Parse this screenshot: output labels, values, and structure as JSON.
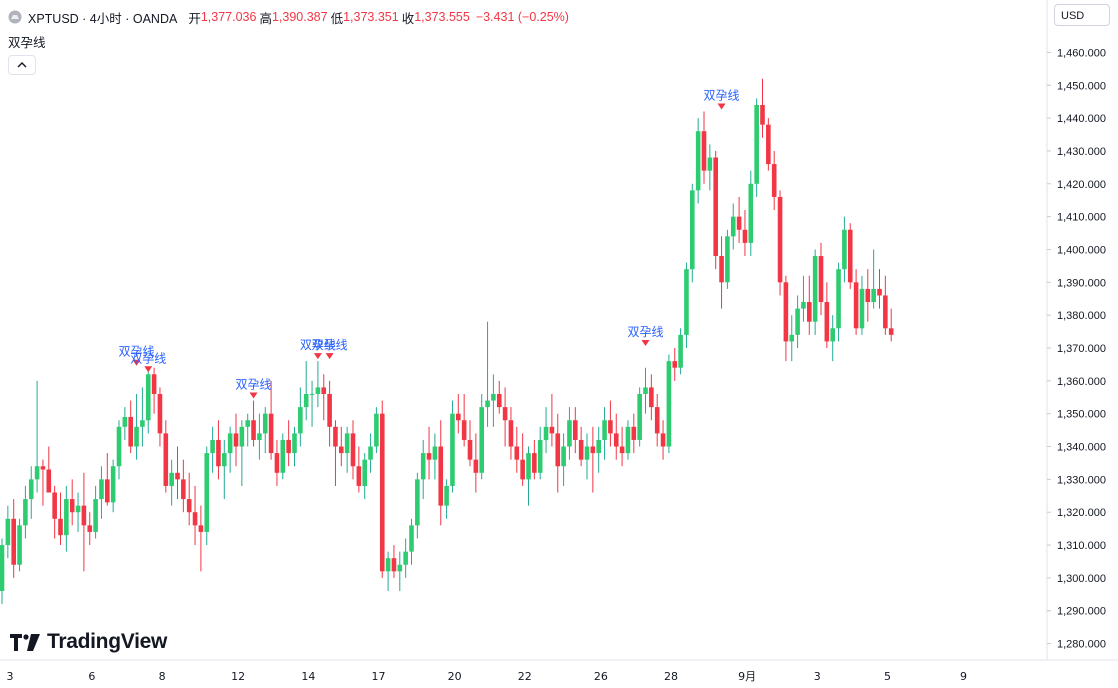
{
  "header": {
    "title": "XPTUSD · 4小时 · OANDA",
    "open_label": "开",
    "open_value": "1,377.036",
    "high_label": "高",
    "high_value": "1,390.387",
    "low_label": "低",
    "low_value": "1,373.351",
    "close_label": "收",
    "close_value": "1,373.555",
    "change": "−3.431 (−0.25%)"
  },
  "indicator": {
    "name": "双孕线"
  },
  "currency": "USD",
  "logo_text": "TradingView",
  "colors": {
    "up": "#22ab94",
    "up_fill": "#2ecc71",
    "down": "#f23645",
    "signal": "#2962ff",
    "marker": "#f23645",
    "axis_text": "#131722"
  },
  "chart_data": {
    "type": "candlestick",
    "ylim": [
      1275,
      1465
    ],
    "y_ticks": [
      1280,
      1290,
      1300,
      1310,
      1320,
      1330,
      1340,
      1350,
      1360,
      1370,
      1380,
      1390,
      1400,
      1410,
      1420,
      1430,
      1440,
      1450,
      1460
    ],
    "y_tick_labels": [
      "1,280.000",
      "1,290.000",
      "1,300.000",
      "1,310.000",
      "1,320.000",
      "1,330.000",
      "1,340.000",
      "1,350.000",
      "1,360.000",
      "1,370.000",
      "1,380.000",
      "1,390.000",
      "1,400.000",
      "1,410.000",
      "1,420.000",
      "1,430.000",
      "1,440.000",
      "1,450.000",
      "1,460.000"
    ],
    "x_labels": [
      {
        "label": "3",
        "index": 0
      },
      {
        "label": "6",
        "index": 14
      },
      {
        "label": "8",
        "index": 26
      },
      {
        "label": "12",
        "index": 39
      },
      {
        "label": "14",
        "index": 51
      },
      {
        "label": "17",
        "index": 63
      },
      {
        "label": "20",
        "index": 76
      },
      {
        "label": "22",
        "index": 88
      },
      {
        "label": "26",
        "index": 101
      },
      {
        "label": "28",
        "index": 113
      },
      {
        "label": "9月",
        "index": 126
      },
      {
        "label": "3",
        "index": 138
      },
      {
        "label": "5",
        "index": 150
      },
      {
        "label": "9",
        "index": 163
      }
    ],
    "candles": [
      [
        1296,
        1312,
        1292,
        1310
      ],
      [
        1310,
        1322,
        1306,
        1318
      ],
      [
        1318,
        1324,
        1300,
        1304
      ],
      [
        1304,
        1318,
        1302,
        1316
      ],
      [
        1316,
        1328,
        1312,
        1324
      ],
      [
        1324,
        1334,
        1318,
        1330
      ],
      [
        1330,
        1360,
        1326,
        1334
      ],
      [
        1334,
        1336,
        1322,
        1333
      ],
      [
        1333,
        1340,
        1326,
        1326
      ],
      [
        1326,
        1328,
        1312,
        1318
      ],
      [
        1318,
        1326,
        1310,
        1313
      ],
      [
        1313,
        1328,
        1308,
        1324
      ],
      [
        1324,
        1330,
        1316,
        1320
      ],
      [
        1320,
        1326,
        1314,
        1322
      ],
      [
        1322,
        1332,
        1302,
        1316
      ],
      [
        1316,
        1320,
        1310,
        1314
      ],
      [
        1314,
        1328,
        1312,
        1324
      ],
      [
        1324,
        1334,
        1318,
        1330
      ],
      [
        1330,
        1338,
        1322,
        1323
      ],
      [
        1323,
        1336,
        1320,
        1334
      ],
      [
        1334,
        1348,
        1330,
        1346
      ],
      [
        1346,
        1352,
        1342,
        1349
      ],
      [
        1349,
        1354,
        1338,
        1340
      ],
      [
        1340,
        1356,
        1336,
        1346
      ],
      [
        1346,
        1358,
        1340,
        1348
      ],
      [
        1348,
        1364,
        1344,
        1362
      ],
      [
        1362,
        1364,
        1350,
        1356
      ],
      [
        1356,
        1358,
        1340,
        1344
      ],
      [
        1344,
        1348,
        1326,
        1328
      ],
      [
        1328,
        1336,
        1322,
        1332
      ],
      [
        1332,
        1340,
        1324,
        1330
      ],
      [
        1330,
        1336,
        1320,
        1324
      ],
      [
        1324,
        1332,
        1316,
        1320
      ],
      [
        1320,
        1328,
        1310,
        1316
      ],
      [
        1316,
        1322,
        1302,
        1314
      ],
      [
        1314,
        1340,
        1310,
        1338
      ],
      [
        1338,
        1346,
        1332,
        1342
      ],
      [
        1342,
        1348,
        1330,
        1334
      ],
      [
        1334,
        1342,
        1324,
        1338
      ],
      [
        1338,
        1346,
        1332,
        1344
      ],
      [
        1344,
        1350,
        1334,
        1340
      ],
      [
        1340,
        1348,
        1328,
        1346
      ],
      [
        1346,
        1350,
        1340,
        1348
      ],
      [
        1348,
        1354,
        1340,
        1342
      ],
      [
        1342,
        1350,
        1336,
        1344
      ],
      [
        1344,
        1352,
        1338,
        1350
      ],
      [
        1350,
        1360,
        1336,
        1338
      ],
      [
        1338,
        1342,
        1328,
        1332
      ],
      [
        1332,
        1344,
        1330,
        1342
      ],
      [
        1342,
        1348,
        1334,
        1338
      ],
      [
        1338,
        1346,
        1334,
        1344
      ],
      [
        1344,
        1358,
        1340,
        1352
      ],
      [
        1352,
        1366,
        1348,
        1356
      ],
      [
        1356,
        1360,
        1346,
        1356
      ],
      [
        1356,
        1366,
        1352,
        1358
      ],
      [
        1358,
        1362,
        1348,
        1356
      ],
      [
        1356,
        1360,
        1340,
        1346
      ],
      [
        1346,
        1348,
        1328,
        1340
      ],
      [
        1340,
        1346,
        1334,
        1338
      ],
      [
        1338,
        1346,
        1332,
        1344
      ],
      [
        1344,
        1348,
        1330,
        1334
      ],
      [
        1334,
        1340,
        1326,
        1328
      ],
      [
        1328,
        1338,
        1324,
        1336
      ],
      [
        1336,
        1344,
        1332,
        1340
      ],
      [
        1340,
        1352,
        1338,
        1350
      ],
      [
        1350,
        1354,
        1300,
        1302
      ],
      [
        1302,
        1308,
        1296,
        1306
      ],
      [
        1306,
        1310,
        1300,
        1302
      ],
      [
        1302,
        1308,
        1296,
        1304
      ],
      [
        1304,
        1312,
        1300,
        1308
      ],
      [
        1308,
        1318,
        1304,
        1316
      ],
      [
        1316,
        1332,
        1312,
        1330
      ],
      [
        1330,
        1342,
        1324,
        1338
      ],
      [
        1338,
        1346,
        1330,
        1336
      ],
      [
        1336,
        1344,
        1330,
        1340
      ],
      [
        1340,
        1348,
        1316,
        1322
      ],
      [
        1322,
        1330,
        1318,
        1328
      ],
      [
        1328,
        1354,
        1326,
        1350
      ],
      [
        1350,
        1356,
        1344,
        1348
      ],
      [
        1348,
        1356,
        1340,
        1342
      ],
      [
        1342,
        1348,
        1334,
        1336
      ],
      [
        1336,
        1344,
        1326,
        1332
      ],
      [
        1332,
        1356,
        1330,
        1352
      ],
      [
        1352,
        1378,
        1346,
        1354
      ],
      [
        1354,
        1362,
        1346,
        1356
      ],
      [
        1356,
        1360,
        1350,
        1352
      ],
      [
        1352,
        1358,
        1340,
        1348
      ],
      [
        1348,
        1352,
        1336,
        1340
      ],
      [
        1340,
        1346,
        1332,
        1336
      ],
      [
        1336,
        1344,
        1328,
        1330
      ],
      [
        1330,
        1340,
        1322,
        1338
      ],
      [
        1338,
        1342,
        1330,
        1332
      ],
      [
        1332,
        1346,
        1330,
        1342
      ],
      [
        1342,
        1352,
        1338,
        1346
      ],
      [
        1346,
        1356,
        1340,
        1344
      ],
      [
        1344,
        1350,
        1326,
        1334
      ],
      [
        1334,
        1344,
        1328,
        1340
      ],
      [
        1340,
        1352,
        1336,
        1348
      ],
      [
        1348,
        1352,
        1338,
        1342
      ],
      [
        1342,
        1346,
        1334,
        1336
      ],
      [
        1336,
        1344,
        1330,
        1340
      ],
      [
        1340,
        1346,
        1326,
        1338
      ],
      [
        1338,
        1346,
        1332,
        1342
      ],
      [
        1342,
        1352,
        1336,
        1348
      ],
      [
        1348,
        1354,
        1340,
        1344
      ],
      [
        1344,
        1350,
        1336,
        1340
      ],
      [
        1340,
        1346,
        1334,
        1338
      ],
      [
        1338,
        1348,
        1336,
        1346
      ],
      [
        1346,
        1350,
        1338,
        1342
      ],
      [
        1342,
        1358,
        1340,
        1356
      ],
      [
        1356,
        1364,
        1350,
        1358
      ],
      [
        1358,
        1362,
        1348,
        1352
      ],
      [
        1352,
        1356,
        1340,
        1344
      ],
      [
        1344,
        1348,
        1336,
        1340
      ],
      [
        1340,
        1368,
        1338,
        1366
      ],
      [
        1366,
        1370,
        1360,
        1364
      ],
      [
        1364,
        1376,
        1362,
        1374
      ],
      [
        1374,
        1396,
        1370,
        1394
      ],
      [
        1394,
        1420,
        1390,
        1418
      ],
      [
        1418,
        1440,
        1414,
        1436
      ],
      [
        1436,
        1442,
        1420,
        1424
      ],
      [
        1424,
        1432,
        1418,
        1428
      ],
      [
        1428,
        1430,
        1394,
        1398
      ],
      [
        1398,
        1404,
        1382,
        1390
      ],
      [
        1390,
        1406,
        1388,
        1404
      ],
      [
        1404,
        1414,
        1400,
        1410
      ],
      [
        1410,
        1416,
        1402,
        1406
      ],
      [
        1406,
        1412,
        1398,
        1402
      ],
      [
        1402,
        1424,
        1398,
        1420
      ],
      [
        1420,
        1446,
        1416,
        1444
      ],
      [
        1444,
        1452,
        1434,
        1438
      ],
      [
        1438,
        1440,
        1424,
        1426
      ],
      [
        1426,
        1430,
        1412,
        1416
      ],
      [
        1416,
        1418,
        1386,
        1390
      ],
      [
        1390,
        1392,
        1366,
        1372
      ],
      [
        1372,
        1380,
        1366,
        1374
      ],
      [
        1374,
        1386,
        1370,
        1382
      ],
      [
        1382,
        1392,
        1378,
        1384
      ],
      [
        1384,
        1392,
        1374,
        1378
      ],
      [
        1378,
        1400,
        1374,
        1398
      ],
      [
        1398,
        1402,
        1380,
        1384
      ],
      [
        1384,
        1390,
        1370,
        1372
      ],
      [
        1372,
        1380,
        1366,
        1376
      ],
      [
        1376,
        1396,
        1372,
        1394
      ],
      [
        1394,
        1410,
        1390,
        1406
      ],
      [
        1406,
        1408,
        1388,
        1390
      ],
      [
        1390,
        1394,
        1374,
        1376
      ],
      [
        1376,
        1392,
        1374,
        1388
      ],
      [
        1388,
        1394,
        1378,
        1384
      ],
      [
        1384,
        1400,
        1382,
        1388
      ],
      [
        1388,
        1394,
        1382,
        1386
      ],
      [
        1386,
        1392,
        1374,
        1376
      ],
      [
        1376,
        1382,
        1372,
        1374
      ]
    ],
    "signals": [
      {
        "label": "双孕线",
        "index": 23,
        "price": 1364
      },
      {
        "label": "双孕线",
        "index": 25,
        "price": 1362
      },
      {
        "label": "双孕线",
        "index": 43,
        "price": 1354
      },
      {
        "label": "双孕线",
        "index": 54,
        "price": 1366
      },
      {
        "label": "双孕线",
        "index": 56,
        "price": 1366
      },
      {
        "label": "双孕线",
        "index": 110,
        "price": 1370
      },
      {
        "label": "双孕线",
        "index": 123,
        "price": 1442
      }
    ]
  }
}
